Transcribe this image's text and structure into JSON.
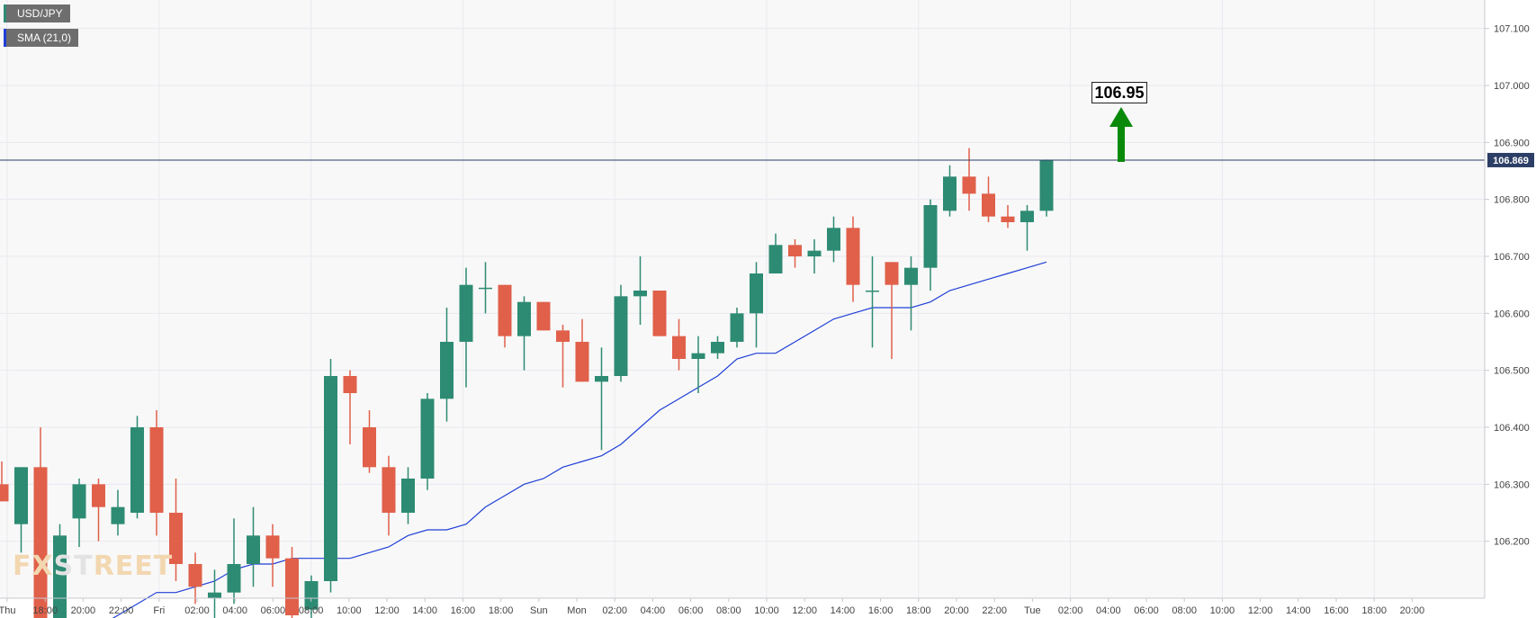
{
  "legend": {
    "symbol": "USD/JPY",
    "indicator": "SMA (21,0)"
  },
  "watermark": {
    "part1": "FX",
    "part2": "ST",
    "part3": "REET"
  },
  "annotation": {
    "target_label": "106.95",
    "arrow": "up-arrow-icon",
    "color": "#0a8a0a"
  },
  "colors": {
    "up": "#2e8b73",
    "down": "#e0604a",
    "sma": "#1f3fd6",
    "price_line": "#2c3e66",
    "grid": "#e9e9f0"
  },
  "chart_data": {
    "type": "candlestick",
    "title": "",
    "ylim": [
      106.1,
      107.15
    ],
    "y_ticks": [
      "107.100",
      "107.000",
      "106.900",
      "106.800",
      "106.700",
      "106.600",
      "106.500",
      "106.400",
      "106.300",
      "106.200"
    ],
    "current_price": "106.869",
    "x_labels": [
      "Thu",
      "18:00",
      "20:00",
      "22:00",
      "Fri",
      "02:00",
      "04:00",
      "06:00",
      "08:00",
      "10:00",
      "12:00",
      "14:00",
      "16:00",
      "18:00",
      "Sun",
      "Mon",
      "02:00",
      "04:00",
      "06:00",
      "08:00",
      "10:00",
      "12:00",
      "14:00",
      "16:00",
      "18:00",
      "20:00",
      "22:00",
      "Tue",
      "02:00",
      "04:00",
      "06:00",
      "08:00",
      "10:00",
      "12:00",
      "14:00",
      "16:00",
      "18:00",
      "20:00"
    ],
    "candles": [
      {
        "o": 106.3,
        "h": 106.34,
        "l": 106.27,
        "c": 106.27
      },
      {
        "o": 106.23,
        "h": 106.33,
        "l": 106.18,
        "c": 106.33
      },
      {
        "o": 106.33,
        "h": 106.4,
        "l": 106.02,
        "c": 106.05
      },
      {
        "o": 106.05,
        "h": 106.23,
        "l": 106.02,
        "c": 106.21
      },
      {
        "o": 106.24,
        "h": 106.31,
        "l": 106.19,
        "c": 106.3
      },
      {
        "o": 106.3,
        "h": 106.31,
        "l": 106.2,
        "c": 106.26
      },
      {
        "o": 106.23,
        "h": 106.29,
        "l": 106.21,
        "c": 106.26
      },
      {
        "o": 106.25,
        "h": 106.42,
        "l": 106.24,
        "c": 106.4
      },
      {
        "o": 106.4,
        "h": 106.43,
        "l": 106.21,
        "c": 106.25
      },
      {
        "o": 106.25,
        "h": 106.31,
        "l": 106.13,
        "c": 106.16
      },
      {
        "o": 106.16,
        "h": 106.18,
        "l": 106.09,
        "c": 106.12
      },
      {
        "o": 106.1,
        "h": 106.15,
        "l": 106.05,
        "c": 106.11
      },
      {
        "o": 106.11,
        "h": 106.24,
        "l": 106.09,
        "c": 106.16
      },
      {
        "o": 106.16,
        "h": 106.26,
        "l": 106.12,
        "c": 106.21
      },
      {
        "o": 106.21,
        "h": 106.23,
        "l": 106.12,
        "c": 106.17
      },
      {
        "o": 106.17,
        "h": 106.19,
        "l": 106.06,
        "c": 106.07
      },
      {
        "o": 106.08,
        "h": 106.14,
        "l": 106.06,
        "c": 106.13
      },
      {
        "o": 106.13,
        "h": 106.52,
        "l": 106.11,
        "c": 106.49
      },
      {
        "o": 106.49,
        "h": 106.5,
        "l": 106.37,
        "c": 106.46
      },
      {
        "o": 106.4,
        "h": 106.43,
        "l": 106.32,
        "c": 106.33
      },
      {
        "o": 106.33,
        "h": 106.35,
        "l": 106.21,
        "c": 106.25
      },
      {
        "o": 106.25,
        "h": 106.33,
        "l": 106.23,
        "c": 106.31
      },
      {
        "o": 106.31,
        "h": 106.46,
        "l": 106.29,
        "c": 106.45
      },
      {
        "o": 106.45,
        "h": 106.61,
        "l": 106.41,
        "c": 106.55
      },
      {
        "o": 106.55,
        "h": 106.68,
        "l": 106.47,
        "c": 106.65
      },
      {
        "o": 106.645,
        "h": 106.69,
        "l": 106.6,
        "c": 106.645
      },
      {
        "o": 106.65,
        "h": 106.65,
        "l": 106.54,
        "c": 106.56
      },
      {
        "o": 106.56,
        "h": 106.63,
        "l": 106.5,
        "c": 106.62
      },
      {
        "o": 106.62,
        "h": 106.62,
        "l": 106.57,
        "c": 106.57
      },
      {
        "o": 106.57,
        "h": 106.58,
        "l": 106.47,
        "c": 106.55
      },
      {
        "o": 106.55,
        "h": 106.59,
        "l": 106.48,
        "c": 106.48
      },
      {
        "o": 106.48,
        "h": 106.54,
        "l": 106.36,
        "c": 106.49
      },
      {
        "o": 106.49,
        "h": 106.65,
        "l": 106.48,
        "c": 106.63
      },
      {
        "o": 106.63,
        "h": 106.7,
        "l": 106.58,
        "c": 106.64
      },
      {
        "o": 106.64,
        "h": 106.64,
        "l": 106.56,
        "c": 106.56
      },
      {
        "o": 106.56,
        "h": 106.59,
        "l": 106.5,
        "c": 106.52
      },
      {
        "o": 106.52,
        "h": 106.56,
        "l": 106.46,
        "c": 106.53
      },
      {
        "o": 106.53,
        "h": 106.56,
        "l": 106.52,
        "c": 106.55
      },
      {
        "o": 106.55,
        "h": 106.61,
        "l": 106.54,
        "c": 106.6
      },
      {
        "o": 106.6,
        "h": 106.69,
        "l": 106.54,
        "c": 106.67
      },
      {
        "o": 106.67,
        "h": 106.74,
        "l": 106.67,
        "c": 106.72
      },
      {
        "o": 106.72,
        "h": 106.73,
        "l": 106.68,
        "c": 106.7
      },
      {
        "o": 106.7,
        "h": 106.73,
        "l": 106.67,
        "c": 106.71
      },
      {
        "o": 106.71,
        "h": 106.77,
        "l": 106.69,
        "c": 106.75
      },
      {
        "o": 106.75,
        "h": 106.77,
        "l": 106.62,
        "c": 106.65
      },
      {
        "o": 106.64,
        "h": 106.7,
        "l": 106.54,
        "c": 106.64
      },
      {
        "o": 106.69,
        "h": 106.69,
        "l": 106.52,
        "c": 106.65
      },
      {
        "o": 106.65,
        "h": 106.7,
        "l": 106.57,
        "c": 106.68
      },
      {
        "o": 106.68,
        "h": 106.8,
        "l": 106.64,
        "c": 106.79
      },
      {
        "o": 106.78,
        "h": 106.86,
        "l": 106.77,
        "c": 106.84
      },
      {
        "o": 106.84,
        "h": 106.89,
        "l": 106.78,
        "c": 106.81
      },
      {
        "o": 106.81,
        "h": 106.84,
        "l": 106.76,
        "c": 106.77
      },
      {
        "o": 106.77,
        "h": 106.79,
        "l": 106.75,
        "c": 106.76
      },
      {
        "o": 106.76,
        "h": 106.79,
        "l": 106.71,
        "c": 106.78
      },
      {
        "o": 106.78,
        "h": 106.87,
        "l": 106.77,
        "c": 106.869
      }
    ],
    "sma": [
      106.05,
      106.07,
      106.09,
      106.11,
      106.11,
      106.12,
      106.13,
      106.15,
      106.16,
      106.16,
      106.17,
      106.17,
      106.17,
      106.17,
      106.18,
      106.19,
      106.21,
      106.22,
      106.22,
      106.23,
      106.26,
      106.28,
      106.3,
      106.31,
      106.33,
      106.34,
      106.35,
      106.37,
      106.4,
      106.43,
      106.45,
      106.47,
      106.49,
      106.52,
      106.53,
      106.53,
      106.55,
      106.57,
      106.59,
      106.6,
      106.61,
      106.61,
      106.61,
      106.62,
      106.64,
      106.65,
      106.66,
      106.67,
      106.68,
      106.69
    ]
  }
}
